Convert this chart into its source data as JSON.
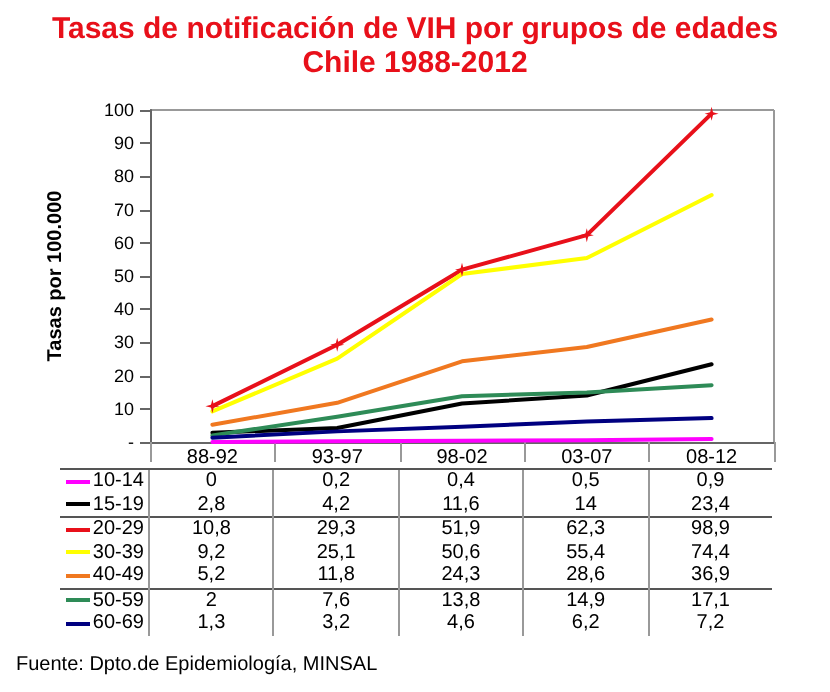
{
  "chart_data": {
    "type": "line",
    "title": "Tasas de notificación de VIH por grupos de edades",
    "subtitle": "Chile 1988-2012",
    "ylabel": "Tasas por 100.000",
    "categories": [
      "88-92",
      "93-97",
      "98-02",
      "03-07",
      "08-12"
    ],
    "ylim": [
      0,
      100
    ],
    "yticks": [
      {
        "value": 0,
        "label": "-"
      },
      10,
      20,
      30,
      40,
      50,
      60,
      70,
      80,
      90,
      100
    ],
    "legend": "bottom",
    "marker": "none",
    "annotations": [
      "Fuente: Dpto.de Epidemiología, MINSAL"
    ],
    "series": [
      {
        "name": "10-14",
        "color": "#ff00ff",
        "values": [
          0,
          0.2,
          0.4,
          0.5,
          0.9
        ],
        "value_labels": [
          "0",
          "0,2",
          "0,4",
          "0,5",
          "0,9"
        ]
      },
      {
        "name": "15-19",
        "color": "#000000",
        "values": [
          2.8,
          4.2,
          11.6,
          14,
          23.4
        ],
        "value_labels": [
          "2,8",
          "4,2",
          "11,6",
          "14",
          "23,4"
        ]
      },
      {
        "name": "20-29",
        "color": "#e8101a",
        "marker": "cross",
        "values": [
          10.8,
          29.3,
          51.9,
          62.3,
          98.9
        ],
        "value_labels": [
          "10,8",
          "29,3",
          "51,9",
          "62,3",
          "98,9"
        ]
      },
      {
        "name": "30-39",
        "color": "#ffff00",
        "values": [
          9.2,
          25.1,
          50.6,
          55.4,
          74.4
        ],
        "value_labels": [
          "9,2",
          "25,1",
          "50,6",
          "55,4",
          "74,4"
        ]
      },
      {
        "name": "40-49",
        "color": "#f07820",
        "values": [
          5.2,
          11.8,
          24.3,
          28.6,
          36.9
        ],
        "value_labels": [
          "5,2",
          "11,8",
          "24,3",
          "28,6",
          "36,9"
        ]
      },
      {
        "name": "50-59",
        "color": "#2e8b57",
        "values": [
          2,
          7.6,
          13.8,
          14.9,
          17.1
        ],
        "value_labels": [
          "2",
          "7,6",
          "13,8",
          "14,9",
          "17,1"
        ]
      },
      {
        "name": "60-69",
        "color": "#000080",
        "values": [
          1.3,
          3.2,
          4.6,
          6.2,
          7.2
        ],
        "value_labels": [
          "1,3",
          "3,2",
          "4,6",
          "6,2",
          "7,2"
        ]
      }
    ]
  }
}
